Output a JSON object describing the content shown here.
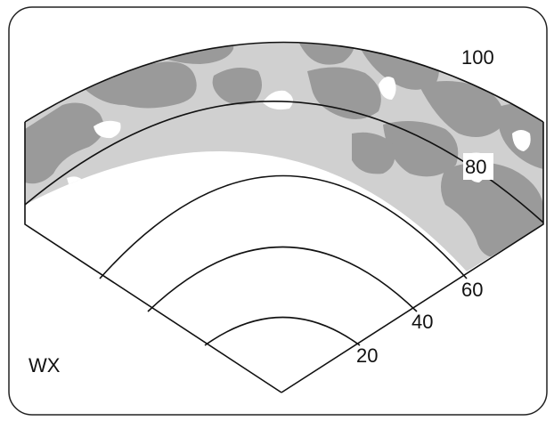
{
  "display": {
    "mode_label": "WX",
    "range_rings": [
      "20",
      "40",
      "60",
      "80",
      "100"
    ],
    "colors": {
      "background": "#ffffff",
      "frame": "#222222",
      "light_return": "#d0d0d0",
      "dark_return": "#9a9a9a",
      "ring": "#111111"
    }
  }
}
